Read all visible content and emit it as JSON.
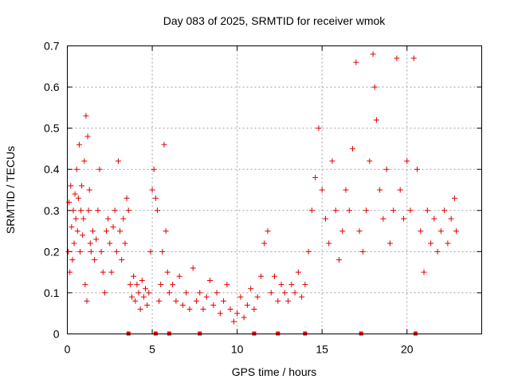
{
  "chart_data": {
    "type": "scatter",
    "title": "Day 083 of 2025, SRMTID for receiver wmok",
    "xlabel": "GPS time / hours",
    "ylabel": "SRMTID / TECUs",
    "xlim": [
      0,
      24.4
    ],
    "ylim": [
      0,
      0.7
    ],
    "xticks": [
      0,
      5,
      10,
      15,
      20
    ],
    "xtick_labels": [
      "0",
      "5",
      "10",
      "15",
      "20"
    ],
    "yticks": [
      0,
      0.1,
      0.2,
      0.3,
      0.4,
      0.5,
      0.6,
      0.7
    ],
    "ytick_labels": [
      "0",
      "0.1",
      "0.2",
      "0.3",
      "0.4",
      "0.5",
      "0.6",
      "0.7"
    ],
    "grid": true,
    "marker": "+",
    "color": "#e00000",
    "series": [
      {
        "name": "SRMTID",
        "points": [
          [
            0.05,
            0.2
          ],
          [
            0.1,
            0.32
          ],
          [
            0.15,
            0.15
          ],
          [
            0.2,
            0.36
          ],
          [
            0.25,
            0.26
          ],
          [
            0.3,
            0.18
          ],
          [
            0.35,
            0.3
          ],
          [
            0.4,
            0.22
          ],
          [
            0.45,
            0.34
          ],
          [
            0.5,
            0.28
          ],
          [
            0.55,
            0.4
          ],
          [
            0.6,
            0.25
          ],
          [
            0.65,
            0.33
          ],
          [
            0.7,
            0.46
          ],
          [
            0.75,
            0.2
          ],
          [
            0.8,
            0.3
          ],
          [
            0.85,
            0.36
          ],
          [
            0.9,
            0.24
          ],
          [
            0.95,
            0.28
          ],
          [
            1.0,
            0.42
          ],
          [
            1.05,
            0.12
          ],
          [
            1.1,
            0.53
          ],
          [
            1.15,
            0.08
          ],
          [
            1.2,
            0.48
          ],
          [
            1.25,
            0.3
          ],
          [
            1.3,
            0.35
          ],
          [
            1.35,
            0.22
          ],
          [
            1.4,
            0.2
          ],
          [
            1.5,
            0.25
          ],
          [
            1.6,
            0.18
          ],
          [
            1.7,
            0.23
          ],
          [
            1.8,
            0.3
          ],
          [
            1.9,
            0.4
          ],
          [
            2.0,
            0.2
          ],
          [
            2.1,
            0.15
          ],
          [
            2.2,
            0.1
          ],
          [
            2.3,
            0.25
          ],
          [
            2.4,
            0.28
          ],
          [
            2.5,
            0.22
          ],
          [
            2.6,
            0.15
          ],
          [
            2.7,
            0.26
          ],
          [
            2.8,
            0.3
          ],
          [
            2.9,
            0.2
          ],
          [
            3.0,
            0.42
          ],
          [
            3.1,
            0.25
          ],
          [
            3.2,
            0.18
          ],
          [
            3.3,
            0.28
          ],
          [
            3.4,
            0.22
          ],
          [
            3.5,
            0.33
          ],
          [
            3.6,
            0.3
          ],
          [
            3.7,
            0.12
          ],
          [
            3.8,
            0.09
          ],
          [
            3.9,
            0.14
          ],
          [
            4.0,
            0.08
          ],
          [
            4.1,
            0.12
          ],
          [
            4.2,
            0.1
          ],
          [
            4.3,
            0.06
          ],
          [
            4.4,
            0.13
          ],
          [
            4.5,
            0.09
          ],
          [
            4.6,
            0.11
          ],
          [
            4.7,
            0.07
          ],
          [
            4.8,
            0.1
          ],
          [
            4.9,
            0.2
          ],
          [
            5.0,
            0.35
          ],
          [
            5.1,
            0.4
          ],
          [
            5.2,
            0.33
          ],
          [
            5.3,
            0.3
          ],
          [
            5.4,
            0.08
          ],
          [
            5.5,
            0.12
          ],
          [
            5.6,
            0.2
          ],
          [
            5.7,
            0.46
          ],
          [
            5.8,
            0.25
          ],
          [
            5.9,
            0.15
          ],
          [
            6.0,
            0.1
          ],
          [
            6.2,
            0.12
          ],
          [
            6.4,
            0.08
          ],
          [
            6.6,
            0.14
          ],
          [
            6.8,
            0.07
          ],
          [
            7.0,
            0.1
          ],
          [
            7.2,
            0.06
          ],
          [
            7.4,
            0.16
          ],
          [
            7.6,
            0.08
          ],
          [
            7.8,
            0.1
          ],
          [
            8.0,
            0.06
          ],
          [
            8.2,
            0.09
          ],
          [
            8.4,
            0.13
          ],
          [
            8.6,
            0.07
          ],
          [
            8.8,
            0.1
          ],
          [
            9.0,
            0.05
          ],
          [
            9.2,
            0.08
          ],
          [
            9.4,
            0.12
          ],
          [
            9.6,
            0.06
          ],
          [
            9.8,
            0.03
          ],
          [
            10.0,
            0.05
          ],
          [
            10.2,
            0.09
          ],
          [
            10.4,
            0.04
          ],
          [
            10.6,
            0.07
          ],
          [
            10.8,
            0.11
          ],
          [
            11.0,
            0.06
          ],
          [
            11.2,
            0.09
          ],
          [
            11.4,
            0.14
          ],
          [
            11.6,
            0.22
          ],
          [
            11.8,
            0.25
          ],
          [
            12.0,
            0.1
          ],
          [
            12.2,
            0.14
          ],
          [
            12.4,
            0.08
          ],
          [
            12.6,
            0.12
          ],
          [
            12.8,
            0.1
          ],
          [
            13.0,
            0.08
          ],
          [
            13.2,
            0.12
          ],
          [
            13.4,
            0.1
          ],
          [
            13.6,
            0.15
          ],
          [
            13.8,
            0.09
          ],
          [
            14.0,
            0.12
          ],
          [
            14.2,
            0.2
          ],
          [
            14.4,
            0.3
          ],
          [
            14.6,
            0.38
          ],
          [
            14.8,
            0.5
          ],
          [
            15.0,
            0.35
          ],
          [
            15.2,
            0.28
          ],
          [
            15.4,
            0.22
          ],
          [
            15.6,
            0.42
          ],
          [
            15.8,
            0.3
          ],
          [
            16.0,
            0.18
          ],
          [
            16.2,
            0.25
          ],
          [
            16.4,
            0.35
          ],
          [
            16.6,
            0.3
          ],
          [
            16.8,
            0.45
          ],
          [
            17.0,
            0.66
          ],
          [
            17.2,
            0.25
          ],
          [
            17.4,
            0.2
          ],
          [
            17.6,
            0.3
          ],
          [
            17.8,
            0.42
          ],
          [
            18.0,
            0.68
          ],
          [
            18.1,
            0.6
          ],
          [
            18.2,
            0.52
          ],
          [
            18.4,
            0.35
          ],
          [
            18.6,
            0.28
          ],
          [
            18.8,
            0.4
          ],
          [
            19.0,
            0.22
          ],
          [
            19.2,
            0.3
          ],
          [
            19.4,
            0.67
          ],
          [
            19.6,
            0.35
          ],
          [
            19.8,
            0.28
          ],
          [
            20.0,
            0.42
          ],
          [
            20.2,
            0.3
          ],
          [
            20.4,
            0.67
          ],
          [
            20.6,
            0.4
          ],
          [
            20.8,
            0.25
          ],
          [
            21.0,
            0.15
          ],
          [
            21.2,
            0.3
          ],
          [
            21.4,
            0.22
          ],
          [
            21.6,
            0.28
          ],
          [
            21.8,
            0.2
          ],
          [
            22.0,
            0.25
          ],
          [
            22.2,
            0.3
          ],
          [
            22.4,
            0.22
          ],
          [
            22.6,
            0.28
          ],
          [
            22.8,
            0.33
          ],
          [
            22.9,
            0.25
          ]
        ]
      }
    ],
    "axis_markers_x": [
      3.6,
      5.2,
      6.0,
      7.8,
      11.0,
      12.4,
      14.0,
      17.3,
      20.5
    ]
  }
}
